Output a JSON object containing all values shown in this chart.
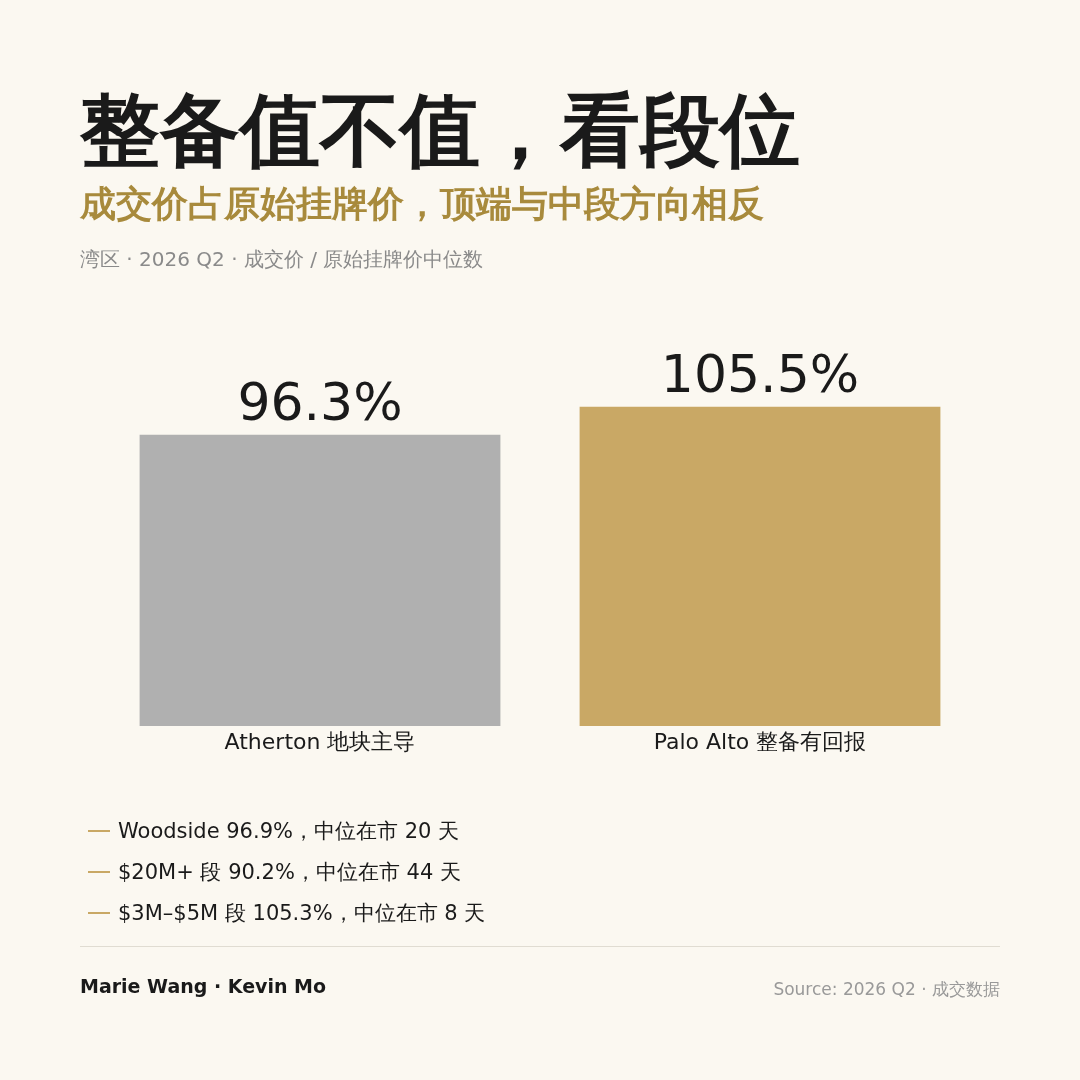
{
  "chart_data": {
    "type": "bar",
    "title": "整备值不值，看段位",
    "subtitle": "成交价占原始挂牌价，顶端与中段方向相反",
    "categories": [
      "Atherton 地块主导",
      "Palo Alto 整备有回报"
    ],
    "values": [
      96.3,
      105.5
    ],
    "value_labels": [
      "96.3%",
      "105.5%"
    ],
    "colors": [
      "#b0b0b0",
      "#c9a865"
    ],
    "annotations": [
      "湾区 · 2026 Q2 · 成交价 / 原始挂牌价中位数",
      "Woodside 96.9%，中位在市 20 天",
      "$20M+ 段 90.2%，中位在市 44 天",
      "$3M–$5M 段 105.3%，中位在市 8 天",
      "Marie Wang · Kevin Mo",
      "Source: 2026 Q2 · 成交数据"
    ]
  }
}
